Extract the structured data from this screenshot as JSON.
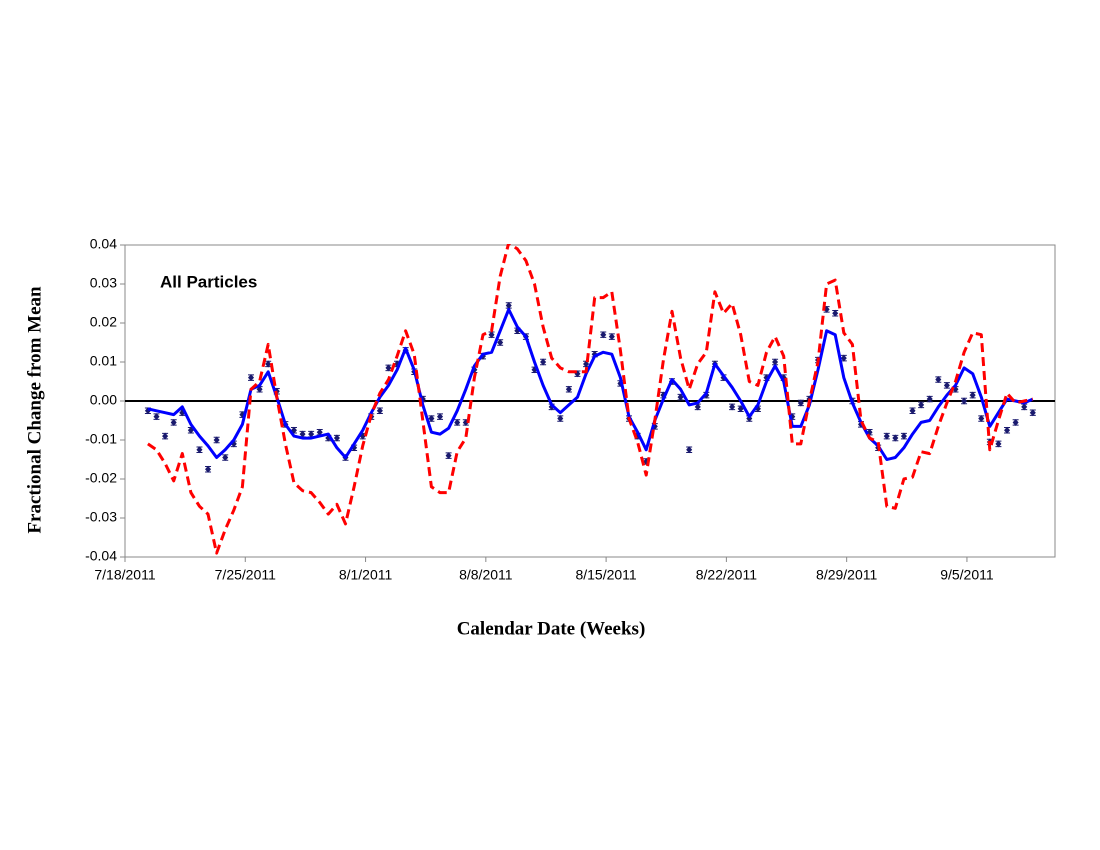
{
  "chart_data": {
    "type": "scatter",
    "title": "All Particles",
    "x_label": "Calendar Date (Weeks)",
    "y_label": "Fractional Change from Mean",
    "xlim": [
      "2011-07-18T00:00",
      "2011-09-10T03:00"
    ],
    "xticks": [
      {
        "value": "2011-07-18T00:00",
        "label": "7/18/2011"
      },
      {
        "value": "2011-07-25T00:00",
        "label": "7/25/2011"
      },
      {
        "value": "2011-08-01T00:00",
        "label": "8/1/2011"
      },
      {
        "value": "2011-08-08T00:00",
        "label": "8/8/2011"
      },
      {
        "value": "2011-08-15T00:00",
        "label": "8/15/2011"
      },
      {
        "value": "2011-08-22T00:00",
        "label": "8/22/2011"
      },
      {
        "value": "2011-08-29T00:00",
        "label": "8/29/2011"
      },
      {
        "value": "2011-09-05T00:00",
        "label": "9/5/2011"
      }
    ],
    "ylim": [
      -0.04,
      0.04
    ],
    "yticks": [
      -0.04,
      -0.03,
      -0.02,
      -0.01,
      {
        "value": 0,
        "label": "0.00"
      },
      0.01,
      0.02,
      0.03,
      0.04
    ],
    "x": [
      "2011-07-19T08:00",
      "2011-07-19T20:00",
      "2011-07-20T08:00",
      "2011-07-20T20:00",
      "2011-07-21T08:00",
      "2011-07-21T20:00",
      "2011-07-22T08:00",
      "2011-07-22T20:00",
      "2011-07-23T08:00",
      "2011-07-23T20:00",
      "2011-07-24T08:00",
      "2011-07-24T20:00",
      "2011-07-25T08:00",
      "2011-07-25T20:00",
      "2011-07-26T08:00",
      "2011-07-26T20:00",
      "2011-07-27T08:00",
      "2011-07-27T20:00",
      "2011-07-28T08:00",
      "2011-07-28T20:00",
      "2011-07-29T08:00",
      "2011-07-29T20:00",
      "2011-07-30T08:00",
      "2011-07-30T20:00",
      "2011-07-31T08:00",
      "2011-07-31T20:00",
      "2011-08-01T08:00",
      "2011-08-01T20:00",
      "2011-08-02T08:00",
      "2011-08-02T20:00",
      "2011-08-03T08:00",
      "2011-08-03T20:00",
      "2011-08-04T08:00",
      "2011-08-04T20:00",
      "2011-08-05T08:00",
      "2011-08-05T20:00",
      "2011-08-06T08:00",
      "2011-08-06T20:00",
      "2011-08-07T08:00",
      "2011-08-07T20:00",
      "2011-08-08T08:00",
      "2011-08-08T20:00",
      "2011-08-09T08:00",
      "2011-08-09T20:00",
      "2011-08-10T08:00",
      "2011-08-10T20:00",
      "2011-08-11T08:00",
      "2011-08-11T20:00",
      "2011-08-12T08:00",
      "2011-08-12T20:00",
      "2011-08-13T08:00",
      "2011-08-13T20:00",
      "2011-08-14T08:00",
      "2011-08-14T20:00",
      "2011-08-15T08:00",
      "2011-08-15T20:00",
      "2011-08-16T08:00",
      "2011-08-16T20:00",
      "2011-08-17T08:00",
      "2011-08-17T20:00",
      "2011-08-18T08:00",
      "2011-08-18T20:00",
      "2011-08-19T08:00",
      "2011-08-19T20:00",
      "2011-08-20T08:00",
      "2011-08-20T20:00",
      "2011-08-21T08:00",
      "2011-08-21T20:00",
      "2011-08-22T08:00",
      "2011-08-22T20:00",
      "2011-08-23T08:00",
      "2011-08-23T20:00",
      "2011-08-24T08:00",
      "2011-08-24T20:00",
      "2011-08-25T08:00",
      "2011-08-25T20:00",
      "2011-08-26T08:00",
      "2011-08-26T20:00",
      "2011-08-27T08:00",
      "2011-08-27T20:00",
      "2011-08-28T08:00",
      "2011-08-28T20:00",
      "2011-08-29T08:00",
      "2011-08-29T20:00",
      "2011-08-30T08:00",
      "2011-08-30T20:00",
      "2011-08-31T08:00",
      "2011-08-31T20:00",
      "2011-09-01T08:00",
      "2011-09-01T20:00",
      "2011-09-02T08:00",
      "2011-09-02T20:00",
      "2011-09-03T08:00",
      "2011-09-03T20:00",
      "2011-09-04T08:00",
      "2011-09-04T20:00",
      "2011-09-05T08:00",
      "2011-09-05T20:00",
      "2011-09-06T08:00",
      "2011-09-06T20:00",
      "2011-09-07T08:00",
      "2011-09-07T20:00",
      "2011-09-08T08:00",
      "2011-09-08T20:00"
    ],
    "series": [
      {
        "type": "scatter",
        "color": "#1a1a6e",
        "values": [
          -0.0025,
          -0.004,
          -0.009,
          -0.0055,
          -0.003,
          -0.0075,
          -0.0125,
          -0.0175,
          -0.01,
          -0.0145,
          -0.011,
          -0.0035,
          0.006,
          0.003,
          0.0095,
          0.0025,
          -0.006,
          -0.0075,
          -0.0085,
          -0.0085,
          -0.008,
          -0.0095,
          -0.0095,
          -0.0145,
          -0.012,
          -0.009,
          -0.004,
          -0.0025,
          0.0085,
          0.0095,
          0.013,
          0.0075,
          0.0005,
          -0.0045,
          -0.004,
          -0.014,
          -0.0055,
          -0.0055,
          0.008,
          0.0115,
          0.017,
          0.015,
          0.0245,
          0.018,
          0.0165,
          0.008,
          0.01,
          -0.0015,
          -0.0045,
          0.003,
          0.007,
          0.0095,
          0.012,
          0.017,
          0.0165,
          0.0045,
          -0.0045,
          -0.009,
          -0.0155,
          -0.0065,
          0.0015,
          0.005,
          0.001,
          -0.0125,
          -0.0015,
          0.0015,
          0.0095,
          0.006,
          -0.0015,
          -0.002,
          -0.0045,
          -0.002,
          0.006,
          0.01,
          0.006,
          -0.004,
          -0.0005,
          0.0005,
          0.0105,
          0.0235,
          0.0225,
          0.011,
          0,
          -0.006,
          -0.008,
          -0.012,
          -0.009,
          -0.0095,
          -0.009,
          -0.0025,
          -0.001,
          0.0005,
          0.0055,
          0.004,
          0.003,
          0,
          0.0015,
          -0.0045,
          -0.0105,
          -0.011,
          -0.0075,
          -0.0055,
          -0.0015,
          -0.003
        ],
        "errors": [
          0.0007,
          0.0007,
          0.0007,
          0.0007,
          0.0007,
          0.0007,
          0.0007,
          0.0007,
          0.0007,
          0.0007,
          0.0007,
          0.0007,
          0.0007,
          0.0007,
          0.0007,
          0.0007,
          0.0007,
          0.0007,
          0.0007,
          0.0007,
          0.0007,
          0.0007,
          0.0007,
          0.0007,
          0.0007,
          0.0007,
          0.0007,
          0.0007,
          0.0007,
          0.0007,
          0.0007,
          0.0007,
          0.0007,
          0.0007,
          0.0007,
          0.0007,
          0.0007,
          0.0007,
          0.0007,
          0.0007,
          0.0007,
          0.0007,
          0.0007,
          0.0007,
          0.0007,
          0.0007,
          0.0007,
          0.0007,
          0.0007,
          0.0007,
          0.0007,
          0.0007,
          0.0007,
          0.0007,
          0.0007,
          0.0007,
          0.0007,
          0.0007,
          0.0007,
          0.0007,
          0.0007,
          0.0007,
          0.0007,
          0.0007,
          0.0007,
          0.0007,
          0.0007,
          0.0007,
          0.0007,
          0.0007,
          0.0007,
          0.0007,
          0.0007,
          0.0007,
          0.0007,
          0.0007,
          0.0007,
          0.0007,
          0.0007,
          0.0007,
          0.0007,
          0.0007,
          0.0007,
          0.0007,
          0.0007,
          0.0007,
          0.0007,
          0.0007,
          0.0007,
          0.0007,
          0.0007,
          0.0007,
          0.0007,
          0.0007,
          0.0007,
          0.0007,
          0.0007,
          0.0007,
          0.0007,
          0.0007,
          0.0007,
          0.0007,
          0.0007,
          0.0007
        ]
      },
      {
        "type": "line",
        "color": "#0000ff",
        "dashed": false,
        "values": [
          -0.002,
          -0.0025,
          -0.003,
          -0.0035,
          -0.0015,
          -0.006,
          -0.009,
          -0.0115,
          -0.0145,
          -0.0125,
          -0.01,
          -0.006,
          0.003,
          0.004,
          0.0075,
          0.001,
          -0.006,
          -0.009,
          -0.0095,
          -0.0095,
          -0.009,
          -0.0085,
          -0.012,
          -0.0145,
          -0.011,
          -0.0075,
          -0.003,
          0.001,
          0.004,
          0.008,
          0.0135,
          0.008,
          -0.001,
          -0.008,
          -0.0085,
          -0.007,
          -0.0025,
          0.003,
          0.009,
          0.012,
          0.0125,
          0.018,
          0.0235,
          0.019,
          0.0165,
          0.01,
          0.004,
          -0.001,
          -0.003,
          -0.001,
          0.001,
          0.007,
          0.0115,
          0.0125,
          0.012,
          0.006,
          -0.004,
          -0.008,
          -0.0125,
          -0.005,
          0.0005,
          0.0055,
          0.003,
          -0.001,
          -0.0005,
          0.002,
          0.0095,
          0.0065,
          0.0035,
          0,
          -0.004,
          -0.001,
          0.005,
          0.009,
          0.005,
          -0.0065,
          -0.0065,
          -0.001,
          0.008,
          0.018,
          0.017,
          0.006,
          -0.0005,
          -0.0055,
          -0.0095,
          -0.0115,
          -0.015,
          -0.0145,
          -0.012,
          -0.0085,
          -0.0055,
          -0.005,
          -0.0015,
          0.0015,
          0.004,
          0.0085,
          0.007,
          0.001,
          -0.0065,
          -0.003,
          0.0005,
          0,
          -0.0005,
          0.0005
        ]
      },
      {
        "type": "line",
        "color": "#ff0000",
        "dashed": true,
        "values": [
          -0.011,
          -0.0125,
          -0.016,
          -0.0205,
          -0.0135,
          -0.0235,
          -0.027,
          -0.029,
          -0.039,
          -0.033,
          -0.028,
          -0.022,
          0.003,
          0.005,
          0.0145,
          0.001,
          -0.011,
          -0.021,
          -0.023,
          -0.0235,
          -0.026,
          -0.029,
          -0.0265,
          -0.0315,
          -0.022,
          -0.0115,
          -0.0035,
          0.002,
          0.0055,
          0.0115,
          0.018,
          0.012,
          -0.005,
          -0.022,
          -0.0235,
          -0.0235,
          -0.013,
          -0.0095,
          0.006,
          0.017,
          0.018,
          0.032,
          0.0405,
          0.039,
          0.036,
          0.03,
          0.019,
          0.011,
          0.0085,
          0.0075,
          0.0075,
          0.0075,
          0.0265,
          0.0265,
          0.028,
          0.013,
          -0.0045,
          -0.0105,
          -0.019,
          -0.005,
          0.0105,
          0.023,
          0.011,
          0.003,
          0.0095,
          0.0125,
          0.028,
          0.0225,
          0.025,
          0.017,
          0.005,
          0.004,
          0.0125,
          0.0165,
          0.0115,
          -0.011,
          -0.011,
          0,
          0.01,
          0.03,
          0.031,
          0.0175,
          0.0145,
          -0.005,
          -0.0095,
          -0.0105,
          -0.027,
          -0.0275,
          -0.02,
          -0.0195,
          -0.013,
          -0.0135,
          -0.0065,
          -0.0005,
          0.005,
          0.0125,
          0.0175,
          0.017,
          -0.0125,
          -0.005,
          0.002,
          -0.0005,
          0,
          0.0005
        ]
      }
    ]
  }
}
